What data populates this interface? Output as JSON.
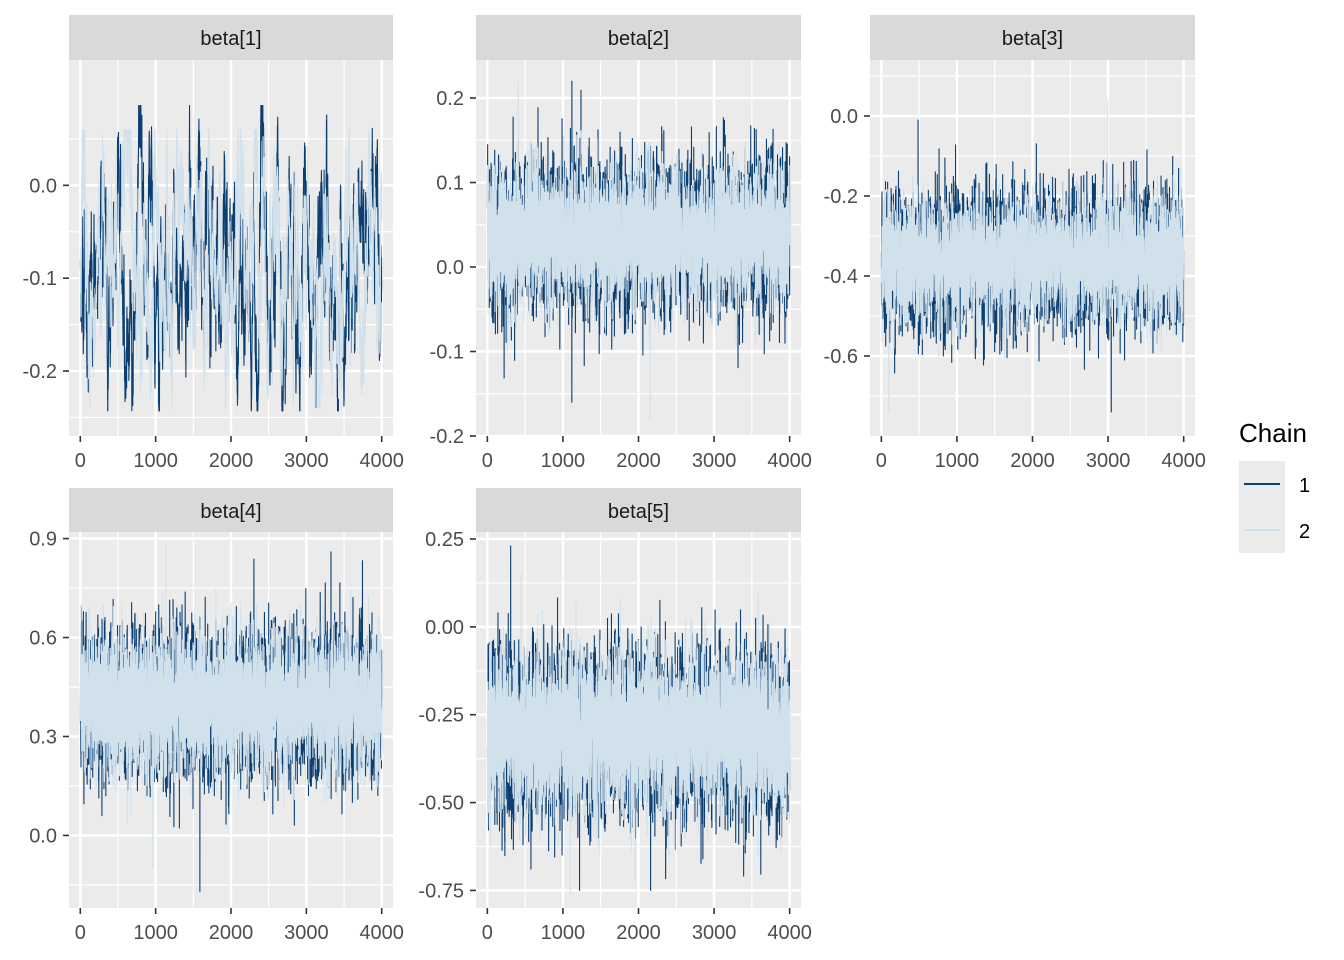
{
  "colors": {
    "chain1": "#0b3f72",
    "chain2": "#d1e1ec",
    "panel_bg": "#ebebeb",
    "strip_bg": "#d9d9d9",
    "grid": "#ffffff",
    "text": "#4d4d4d"
  },
  "legend": {
    "title": "Chain",
    "items": [
      {
        "label": "1",
        "color": "#0b3f72"
      },
      {
        "label": "2",
        "color": "#d1e1ec"
      }
    ]
  },
  "chart_data": [
    {
      "type": "line",
      "title": "beta[1]",
      "xlim": [
        -150,
        4150
      ],
      "ylim": [
        -0.27,
        0.135
      ],
      "x_ticks": [
        0,
        1000,
        2000,
        3000,
        4000
      ],
      "x_tick_labels": [
        "0",
        "1000",
        "2000",
        "3000",
        "4000"
      ],
      "y_ticks": [
        -0.2,
        -0.1,
        0.0
      ],
      "y_tick_labels": [
        "-0.2",
        "-0.1",
        "0.0"
      ],
      "series": [
        {
          "name": "1",
          "n": 4000,
          "center": -0.085,
          "band_low": -0.2,
          "band_high": 0.03,
          "min": -0.243,
          "max": 0.086,
          "autocorrelated": true
        },
        {
          "name": "2",
          "n": 4000,
          "center": -0.085,
          "band_low": -0.2,
          "band_high": 0.04,
          "min": -0.24,
          "max": 0.06,
          "autocorrelated": true
        }
      ]
    },
    {
      "type": "line",
      "title": "beta[2]",
      "xlim": [
        -150,
        4150
      ],
      "ylim": [
        -0.2,
        0.245
      ],
      "x_ticks": [
        0,
        1000,
        2000,
        3000,
        4000
      ],
      "x_tick_labels": [
        "0",
        "1000",
        "2000",
        "3000",
        "4000"
      ],
      "y_ticks": [
        -0.2,
        -0.1,
        0.0,
        0.1,
        0.2
      ],
      "y_tick_labels": [
        "-0.2",
        "-0.1",
        "0.0",
        "0.1",
        "0.2"
      ],
      "series": [
        {
          "name": "1",
          "n": 4000,
          "center": 0.035,
          "band_low": -0.04,
          "band_high": 0.11,
          "min": -0.16,
          "max": 0.22,
          "autocorrelated": false
        },
        {
          "name": "2",
          "n": 4000,
          "center": 0.035,
          "band_low": -0.03,
          "band_high": 0.1,
          "min": -0.18,
          "max": 0.22,
          "autocorrelated": false
        }
      ]
    },
    {
      "type": "line",
      "title": "beta[3]",
      "xlim": [
        -150,
        4150
      ],
      "ylim": [
        -0.8,
        0.14
      ],
      "x_ticks": [
        0,
        1000,
        2000,
        3000,
        4000
      ],
      "x_tick_labels": [
        "0",
        "1000",
        "2000",
        "3000",
        "4000"
      ],
      "y_ticks": [
        -0.6,
        -0.4,
        -0.2,
        0.0
      ],
      "y_tick_labels": [
        "-0.6",
        "-0.4",
        "-0.2",
        "0.0"
      ],
      "series": [
        {
          "name": "1",
          "n": 4000,
          "center": -0.36,
          "band_low": -0.5,
          "band_high": -0.22,
          "min": -0.74,
          "max": -0.01,
          "autocorrelated": false
        },
        {
          "name": "2",
          "n": 4000,
          "center": -0.36,
          "band_low": -0.48,
          "band_high": -0.24,
          "min": -0.74,
          "max": 0.04,
          "autocorrelated": false
        }
      ]
    },
    {
      "type": "line",
      "title": "beta[4]",
      "xlim": [
        -150,
        4150
      ],
      "ylim": [
        -0.22,
        0.92
      ],
      "x_ticks": [
        0,
        1000,
        2000,
        3000,
        4000
      ],
      "x_tick_labels": [
        "0",
        "1000",
        "2000",
        "3000",
        "4000"
      ],
      "y_ticks": [
        0.0,
        0.3,
        0.6,
        0.9
      ],
      "y_tick_labels": [
        "0.0",
        "0.3",
        "0.6",
        "0.9"
      ],
      "series": [
        {
          "name": "1",
          "n": 4000,
          "center": 0.4,
          "band_low": 0.22,
          "band_high": 0.6,
          "min": -0.17,
          "max": 0.86,
          "autocorrelated": false
        },
        {
          "name": "2",
          "n": 4000,
          "center": 0.4,
          "band_low": 0.24,
          "band_high": 0.58,
          "min": -0.1,
          "max": 0.88,
          "autocorrelated": false
        }
      ]
    },
    {
      "type": "line",
      "title": "beta[5]",
      "xlim": [
        -150,
        4150
      ],
      "ylim": [
        -0.8,
        0.27
      ],
      "x_ticks": [
        0,
        1000,
        2000,
        3000,
        4000
      ],
      "x_tick_labels": [
        "0",
        "1000",
        "2000",
        "3000",
        "4000"
      ],
      "y_ticks": [
        -0.75,
        -0.5,
        -0.25,
        0.0,
        0.25
      ],
      "y_tick_labels": [
        "-0.75",
        "-0.50",
        "-0.25",
        "0.00",
        "0.25"
      ],
      "series": [
        {
          "name": "1",
          "n": 4000,
          "center": -0.3,
          "band_low": -0.5,
          "band_high": -0.1,
          "min": -0.75,
          "max": 0.23,
          "autocorrelated": false
        },
        {
          "name": "2",
          "n": 4000,
          "center": -0.3,
          "band_low": -0.48,
          "band_high": -0.12,
          "min": -0.76,
          "max": 0.15,
          "autocorrelated": false
        }
      ]
    }
  ]
}
